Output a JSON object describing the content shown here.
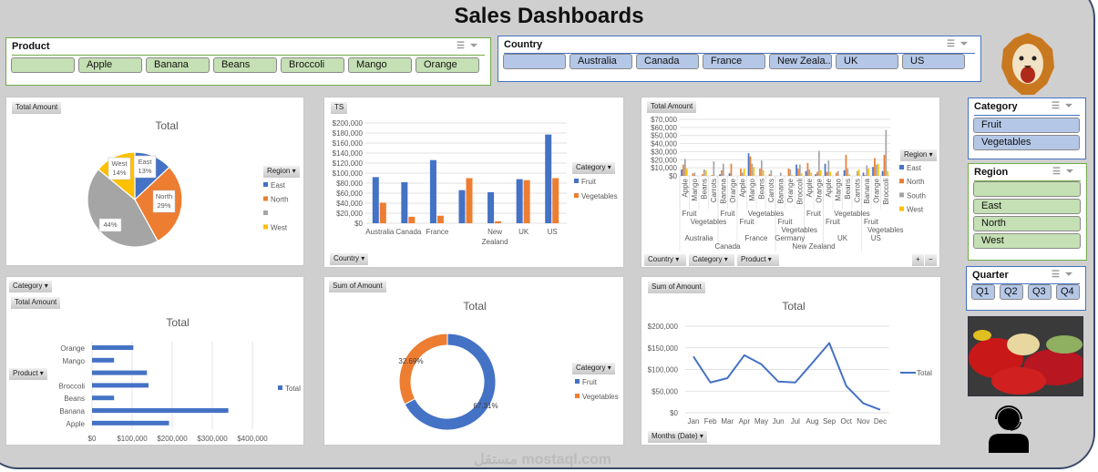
{
  "title": "Sales Dashboards",
  "watermark": "مستقل mostaql.com",
  "colors": {
    "blue": "#4472c4",
    "orange": "#ed7d31",
    "gray": "#a5a5a5",
    "yellow": "#ffc000",
    "green_slicer": "#c5e0b4",
    "blue_slicer": "#b4c7e7",
    "background": "#d0cfcf"
  },
  "icons": {
    "multi_select": "multi-select-icon",
    "clear_filter": "clear-filter-icon",
    "logo": "lion-logo",
    "photo": "vegetables-photo",
    "support": "support-agent-icon"
  },
  "slicers": {
    "product": {
      "title": "Product",
      "items": [
        "",
        "Apple",
        "Banana",
        "Beans",
        "Broccoli",
        "Mango",
        "Orange"
      ]
    },
    "country": {
      "title": "Country",
      "items": [
        "",
        "Australia",
        "Canada",
        "France",
        "New Zeala...",
        "UK",
        "US"
      ]
    },
    "category": {
      "title": "Category",
      "items": [
        "Fruit",
        "Vegetables"
      ]
    },
    "region": {
      "title": "Region",
      "items": [
        "",
        "East",
        "North",
        "West"
      ]
    },
    "quarter": {
      "title": "Quarter",
      "items": [
        "Q1",
        "Q2",
        "Q3",
        "Q4"
      ]
    }
  },
  "chart_data": [
    {
      "id": "region-pie",
      "type": "pie",
      "field_button": "Total  Amount",
      "title": "Total",
      "legend_title": "Region",
      "legend": "right",
      "slices": [
        {
          "name": "East",
          "value": 13,
          "label": "East\n13%"
        },
        {
          "name": "North",
          "value": 29,
          "label": "North\n29%"
        },
        {
          "name": "",
          "value": 44,
          "label": "44%"
        },
        {
          "name": "West",
          "value": 14,
          "label": "West\n14%"
        }
      ]
    },
    {
      "id": "country-bar",
      "type": "bar",
      "field_button": "TS",
      "axis_button": "Country",
      "legend_title": "Category",
      "legend": "right",
      "grid": true,
      "categories": [
        "Australia",
        "Canada",
        "France",
        "",
        "New Zealand",
        "UK",
        "US"
      ],
      "series": [
        {
          "name": "Fruit",
          "values": [
            92000,
            82000,
            126000,
            66000,
            62000,
            88000,
            177000
          ]
        },
        {
          "name": "Vegetables",
          "values": [
            41000,
            13000,
            15000,
            90000,
            4000,
            86000,
            90000
          ]
        }
      ],
      "ylim": [
        0,
        200000
      ],
      "yticks": [
        "$0",
        "$20,000",
        "$40,000",
        "$60,000",
        "$80,000",
        "$100,000",
        "$120,000",
        "$140,000",
        "$160,000",
        "$180,000",
        "$200,000"
      ]
    },
    {
      "id": "country-product-region-bar",
      "type": "bar",
      "field_button": "Total  Amount",
      "axis_buttons": [
        "Country",
        "Category",
        "Product"
      ],
      "legend_title": "Region",
      "legend": "right",
      "grid": true,
      "ylim": [
        0,
        70000
      ],
      "yticks": [
        "$0",
        "$10,000",
        "$20,000",
        "$30,000",
        "$40,000",
        "$50,000",
        "$60,000",
        "$70,000"
      ],
      "series_names": [
        "East",
        "North",
        "South",
        "West"
      ],
      "countries": [
        {
          "name": "Australia",
          "groups": [
            {
              "name": "Fruit",
              "products": [
                {
                  "name": "Apple",
                  "values": [
                    8000,
                    14000,
                    21000,
                    9000
                  ]
                },
                {
                  "name": "Mango",
                  "values": [
                    0,
                    3000,
                    4000,
                    0
                  ]
                }
              ]
            },
            {
              "name": "Vegetables",
              "products": [
                {
                  "name": "Beans",
                  "values": [
                    0,
                    2000,
                    8000,
                    7000
                  ]
                },
                {
                  "name": "Carrots",
                  "values": [
                    0,
                    1000,
                    18000,
                    0
                  ]
                }
              ]
            }
          ]
        },
        {
          "name": "Canada",
          "groups": [
            {
              "name": "Fruit",
              "products": [
                {
                  "name": "Banana",
                  "values": [
                    2000,
                    7000,
                    15000,
                    0
                  ]
                },
                {
                  "name": "Orange",
                  "values": [
                    3000,
                    15000,
                    0,
                    0
                  ]
                }
              ]
            }
          ]
        },
        {
          "name": "France",
          "groups": [
            {
              "name": "Fruit",
              "products": [
                {
                  "name": "Apple",
                  "values": [
                    0,
                    9000,
                    4000,
                    9000
                  ]
                },
                {
                  "name": "Mango",
                  "values": [
                    28000,
                    24000,
                    15000,
                    11000
                  ]
                }
              ]
            },
            {
              "name": "Vegetables",
              "products": [
                {
                  "name": "Beans",
                  "values": [
                    0,
                    9000,
                    19000,
                    7000
                  ]
                },
                {
                  "name": "Carrots",
                  "values": [
                    0,
                    2000,
                    7000,
                    0
                  ]
                }
              ]
            }
          ]
        },
        {
          "name": "Germany",
          "groups": [
            {
              "name": "Fruit",
              "products": [
                {
                  "name": "Banana",
                  "values": [
                    0,
                    0,
                    4000,
                    0
                  ]
                },
                {
                  "name": "Orange",
                  "values": [
                    0,
                    9000,
                    8000,
                    1000
                  ]
                }
              ]
            },
            {
              "name": "Vegetables",
              "products": [
                {
                  "name": "Broccoli",
                  "values": [
                    14000,
                    9000,
                    14000,
                    3000
                  ]
                }
              ]
            }
          ]
        },
        {
          "name": "New Zealand",
          "groups": [
            {
              "name": "Fruit",
              "products": [
                {
                  "name": "Apple",
                  "values": [
                    6000,
                    16000,
                    8000,
                    4000
                  ]
                },
                {
                  "name": "Orange",
                  "values": [
                    2000,
                    5000,
                    31000,
                    7000
                  ]
                }
              ]
            }
          ]
        },
        {
          "name": "UK",
          "groups": [
            {
              "name": "Fruit",
              "products": [
                {
                  "name": "Apple",
                  "values": [
                    15000,
                    5000,
                    19000,
                    5000
                  ]
                },
                {
                  "name": "Mango",
                  "values": [
                    0,
                    4000,
                    6000,
                    0
                  ]
                }
              ]
            },
            {
              "name": "Vegetables",
              "products": [
                {
                  "name": "Beans",
                  "values": [
                    7000,
                    26000,
                    9000,
                    2000
                  ]
                },
                {
                  "name": "Carrots",
                  "values": [
                    0,
                    0,
                    6000,
                    8000
                  ]
                }
              ]
            }
          ]
        },
        {
          "name": "US",
          "groups": [
            {
              "name": "Fruit",
              "products": [
                {
                  "name": "Banana",
                  "values": [
                    4000,
                    1000,
                    13000,
                    9000
                  ]
                },
                {
                  "name": "Orange",
                  "values": [
                    11000,
                    22000,
                    14000,
                    15000
                  ]
                }
              ]
            },
            {
              "name": "Vegetables",
              "products": [
                {
                  "name": "Broccoli",
                  "values": [
                    6000,
                    26000,
                    57000,
                    6000
                  ]
                }
              ]
            }
          ]
        }
      ]
    },
    {
      "id": "product-hbar",
      "type": "bar",
      "orientation": "horizontal",
      "field_buttons": [
        "Category",
        "Total  Amount"
      ],
      "axis_button": "Product",
      "title": "Total",
      "legend": "right",
      "grid": true,
      "categories": [
        "Orange",
        "Mango",
        "",
        "Broccoli",
        "Beans",
        "Banana",
        "Apple"
      ],
      "series": [
        {
          "name": "Total",
          "values": [
            103000,
            55000,
            137000,
            141000,
            55000,
            340000,
            192000
          ]
        }
      ],
      "xlim": [
        0,
        400000
      ],
      "xticks": [
        "$0",
        "$100,000",
        "$200,000",
        "$300,000",
        "$400,000"
      ]
    },
    {
      "id": "category-donut",
      "type": "pie",
      "donut": true,
      "field_button": "Sum of Amount",
      "title": "Total",
      "legend_title": "Category",
      "legend": "right",
      "slices": [
        {
          "name": "Fruit",
          "value": 67.31,
          "label": "67.31%"
        },
        {
          "name": "Vegetables",
          "value": 32.69,
          "label": "32.69%"
        }
      ]
    },
    {
      "id": "monthly-line",
      "type": "line",
      "field_button": "Sum of Amount",
      "axis_button": "Months (Date)",
      "title": "Total",
      "legend": "right",
      "grid": true,
      "x": [
        "Jan",
        "Feb",
        "Mar",
        "Apr",
        "May",
        "Jun",
        "Jul",
        "Aug",
        "Sep",
        "Oct",
        "Nov",
        "Dec"
      ],
      "series": [
        {
          "name": "Total",
          "values": [
            130000,
            70000,
            80000,
            133000,
            112000,
            72000,
            70000,
            115000,
            161000,
            62000,
            22000,
            7000
          ]
        }
      ],
      "ylim": [
        0,
        200000
      ],
      "yticks": [
        "$0",
        "$50,000",
        "$100,000",
        "$150,000",
        "$200,000"
      ]
    }
  ]
}
